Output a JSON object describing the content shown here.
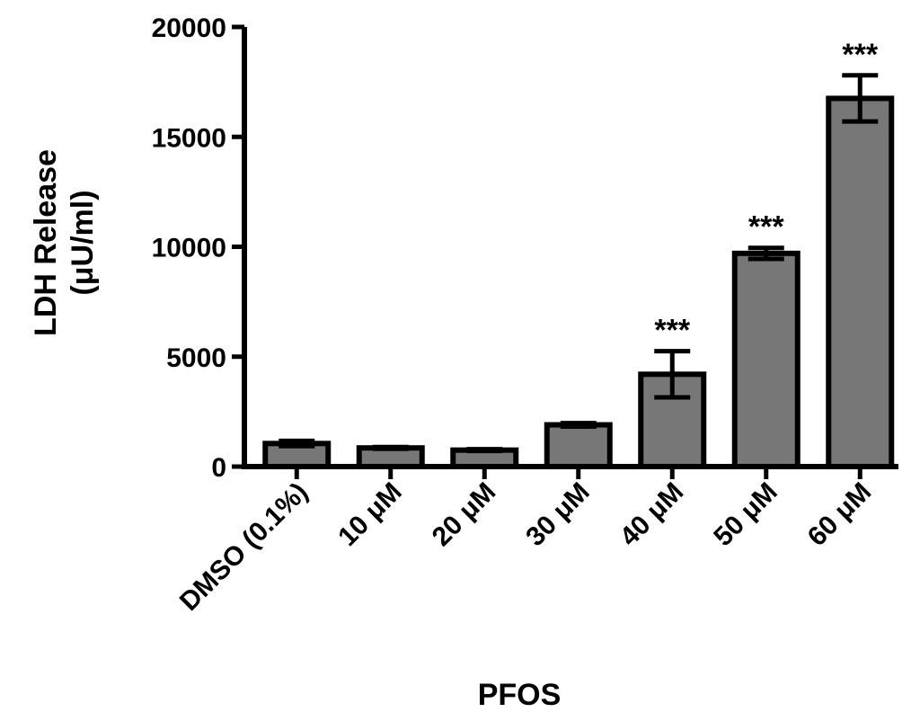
{
  "chart_data": {
    "type": "bar",
    "categories": [
      "DMSO (0.1%)",
      "10 μM",
      "20 μM",
      "30 μM",
      "40 μM",
      "50 μM",
      "60 μM"
    ],
    "values": [
      1050,
      850,
      750,
      1900,
      4200,
      9700,
      16750
    ],
    "errors": [
      120,
      40,
      40,
      80,
      1050,
      250,
      1050
    ],
    "annotations": [
      "",
      "",
      "",
      "",
      "***",
      "***",
      "***"
    ],
    "title": "",
    "xlabel": "PFOS",
    "ylabel_line1": "LDH Release",
    "ylabel_line2": "(μU/ml)",
    "ylim": [
      0,
      20000
    ],
    "yticks": [
      0,
      5000,
      10000,
      15000,
      20000
    ],
    "bar_color": "#777777",
    "grid": false,
    "legend": "none"
  }
}
